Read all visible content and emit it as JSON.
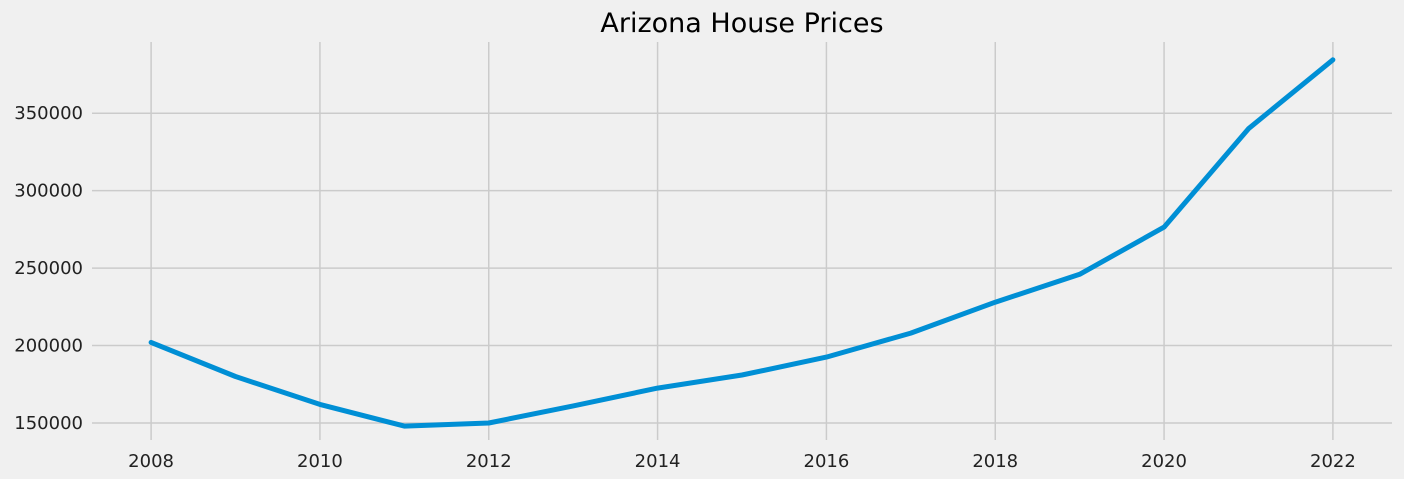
{
  "chart_data": {
    "type": "line",
    "title": "Arizona House Prices",
    "xlabel": "",
    "ylabel": "",
    "x": [
      2008,
      2009,
      2010,
      2011,
      2012,
      2013,
      2014,
      2015,
      2016,
      2017,
      2018,
      2019,
      2020,
      2021,
      2022
    ],
    "series": [
      {
        "values": [
          202000,
          180000,
          162000,
          148000,
          150000,
          161000,
          172500,
          181000,
          192500,
          208000,
          228000,
          246000,
          276500,
          340000,
          384500
        ]
      }
    ],
    "xlim": [
      2007.3,
      2022.7
    ],
    "ylim": [
      139000,
      396000
    ],
    "xticks": [
      2008,
      2010,
      2012,
      2014,
      2016,
      2018,
      2020,
      2022
    ],
    "yticks": [
      150000,
      200000,
      250000,
      300000,
      350000
    ],
    "grid": true,
    "legend": "none",
    "colors": {
      "line": "#008fd5",
      "grid": "#cbcbcb",
      "background": "#f0f0f0"
    }
  }
}
